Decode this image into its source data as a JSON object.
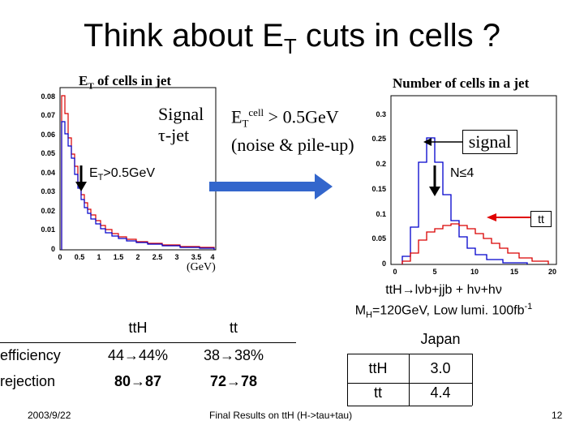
{
  "slide": {
    "title_main": "Think about E",
    "title_sub": "T",
    "title_rest": " cuts in cells ?",
    "date": "2003/9/22",
    "footer": "Final Results on ttH (H->tau+tau)",
    "page_number": "12"
  },
  "left_plot": {
    "title_main": "E",
    "title_sub": "T",
    "title_rest": " of cells in jet",
    "legend_signal": "Signal",
    "legend_tau": "τ-jet",
    "cut_label_main": "E",
    "cut_label_sub": "T",
    "cut_label_rest": ">0.5GeV",
    "unit_label": "(GeV)",
    "y_ticks": [
      "0.08",
      "0.07",
      "0.06",
      "0.05",
      "0.04",
      "0.03",
      "0.02",
      "0.01",
      "0"
    ],
    "x_ticks": [
      "0",
      "0.5",
      "1",
      "1.5",
      "2",
      "2.5",
      "3",
      "3.5",
      "4"
    ]
  },
  "middle": {
    "label_main": "E",
    "label_sub": "T",
    "label_sup": "cell",
    "label_rest": " > 0.5GeV",
    "label_line2": "(noise & pile-up)"
  },
  "right_plot": {
    "title": "Number of cells in a jet",
    "signal_label": "signal",
    "cut_label": "N≤4",
    "tt_label": "tt",
    "y_ticks": [
      "0.3",
      "0.25",
      "0.2",
      "0.15",
      "0.1",
      "0.05",
      "0"
    ],
    "x_ticks": [
      "0",
      "5",
      "10",
      "15",
      "20"
    ]
  },
  "results_table": {
    "col_tth": "ttH",
    "col_tt": "tt",
    "rows": [
      {
        "label": "efficiency",
        "tth": "44→44%",
        "tt": "38→38%"
      },
      {
        "label": "rejection",
        "tth": "80→87",
        "tt": "72→78"
      }
    ]
  },
  "process": {
    "line1": "ttH→lνb+jjb + hν+hν",
    "line2_a": "M",
    "line2_sub": "H",
    "line2_b": "=120GeV, Low lumi. 100fb",
    "line2_sup": "-1"
  },
  "japan_table": {
    "header": "Japan",
    "rows": [
      {
        "label": "ttH",
        "value": "3.0"
      },
      {
        "label": "tt",
        "value": "4.4"
      }
    ]
  },
  "colors": {
    "signal": "#d90000",
    "background": "#0000cc",
    "arrow": "#3366cc",
    "tt_arrow": "#e00000"
  }
}
